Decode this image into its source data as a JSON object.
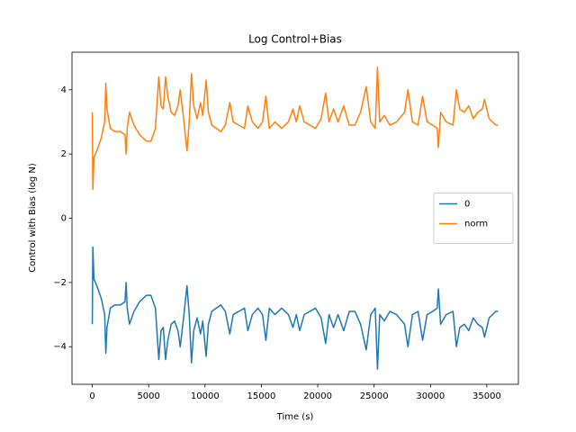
{
  "chart_data": {
    "type": "line",
    "title": "Log Control+Bias",
    "xlabel": "Time (s)",
    "ylabel": "Control with Bias (log N)",
    "x": [
      0,
      50,
      150,
      400,
      800,
      1100,
      1200,
      1300,
      1600,
      2000,
      2500,
      2900,
      3000,
      3100,
      3300,
      3700,
      4200,
      4800,
      5200,
      5600,
      5900,
      6100,
      6300,
      6500,
      6700,
      7000,
      7300,
      7600,
      7800,
      8100,
      8400,
      8600,
      8800,
      9000,
      9300,
      9600,
      9800,
      10100,
      10300,
      10600,
      11000,
      11400,
      11800,
      12200,
      12500,
      13000,
      13500,
      13800,
      14200,
      14700,
      15100,
      15400,
      15700,
      16200,
      16800,
      17400,
      17800,
      18100,
      18400,
      18800,
      19300,
      19800,
      20300,
      20700,
      21000,
      21400,
      21800,
      22300,
      22800,
      23300,
      23800,
      24300,
      24700,
      25100,
      25300,
      25500,
      25900,
      26400,
      27000,
      27700,
      28000,
      28400,
      28900,
      29300,
      29700,
      30200,
      30600,
      30700,
      30900,
      31400,
      32000,
      32300,
      32600,
      33000,
      33400,
      33800,
      34200,
      34600,
      34800,
      35200,
      35800,
      36000
    ],
    "series": [
      {
        "name": "0",
        "color": "#1f77b4",
        "values": [
          -3.3,
          -0.9,
          -1.9,
          -2.1,
          -2.5,
          -3.0,
          -4.2,
          -3.4,
          -2.8,
          -2.7,
          -2.7,
          -2.6,
          -2.0,
          -2.8,
          -3.3,
          -2.9,
          -2.6,
          -2.4,
          -2.4,
          -2.8,
          -4.4,
          -3.5,
          -3.4,
          -4.4,
          -3.8,
          -3.3,
          -3.2,
          -3.5,
          -4.0,
          -3.1,
          -2.1,
          -3.0,
          -4.5,
          -3.5,
          -3.1,
          -3.6,
          -3.2,
          -4.3,
          -3.3,
          -2.9,
          -2.8,
          -2.7,
          -2.9,
          -3.6,
          -3.0,
          -2.9,
          -2.8,
          -3.5,
          -3.0,
          -2.8,
          -3.0,
          -3.8,
          -2.8,
          -3.0,
          -2.8,
          -3.0,
          -3.4,
          -3.0,
          -3.5,
          -3.0,
          -2.9,
          -2.8,
          -3.1,
          -3.9,
          -3.0,
          -3.4,
          -3.0,
          -3.5,
          -2.9,
          -2.9,
          -3.3,
          -4.1,
          -3.0,
          -2.8,
          -4.7,
          -3.0,
          -3.2,
          -2.9,
          -3.0,
          -3.3,
          -4.0,
          -3.0,
          -2.9,
          -3.8,
          -3.0,
          -2.9,
          -2.8,
          -2.2,
          -3.3,
          -3.0,
          -2.9,
          -4.0,
          -3.4,
          -3.3,
          -3.5,
          -3.1,
          -3.3,
          -3.4,
          -3.7,
          -3.1,
          -2.9,
          -2.9
        ]
      },
      {
        "name": "norm",
        "color": "#ff7f0e",
        "values": [
          3.3,
          0.9,
          1.9,
          2.1,
          2.5,
          3.0,
          4.2,
          3.4,
          2.8,
          2.7,
          2.7,
          2.6,
          2.0,
          2.8,
          3.3,
          2.9,
          2.6,
          2.4,
          2.4,
          2.8,
          4.4,
          3.5,
          3.4,
          4.4,
          3.8,
          3.3,
          3.2,
          3.5,
          4.0,
          3.1,
          2.1,
          3.0,
          4.5,
          3.5,
          3.1,
          3.6,
          3.2,
          4.3,
          3.3,
          2.9,
          2.8,
          2.7,
          2.9,
          3.6,
          3.0,
          2.9,
          2.8,
          3.5,
          3.0,
          2.8,
          3.0,
          3.8,
          2.8,
          3.0,
          2.8,
          3.0,
          3.4,
          3.0,
          3.5,
          3.0,
          2.9,
          2.8,
          3.1,
          3.9,
          3.0,
          3.4,
          3.0,
          3.5,
          2.9,
          2.9,
          3.3,
          4.1,
          3.0,
          2.8,
          4.7,
          3.0,
          3.2,
          2.9,
          3.0,
          3.3,
          4.0,
          3.0,
          2.9,
          3.8,
          3.0,
          2.9,
          2.8,
          2.2,
          3.3,
          3.0,
          2.9,
          4.0,
          3.4,
          3.3,
          3.5,
          3.1,
          3.3,
          3.4,
          3.7,
          3.1,
          2.9,
          2.9
        ]
      }
    ],
    "xlim": [
      -1800,
      37800
    ],
    "xticks": [
      0,
      5000,
      10000,
      15000,
      20000,
      25000,
      30000,
      35000
    ],
    "ylim": [
      -5.17,
      5.17
    ],
    "yticks": [
      {
        "value": -4,
        "label": "−4"
      },
      {
        "value": -2,
        "label": "−2"
      },
      0,
      2,
      4
    ],
    "legend": "center right"
  }
}
